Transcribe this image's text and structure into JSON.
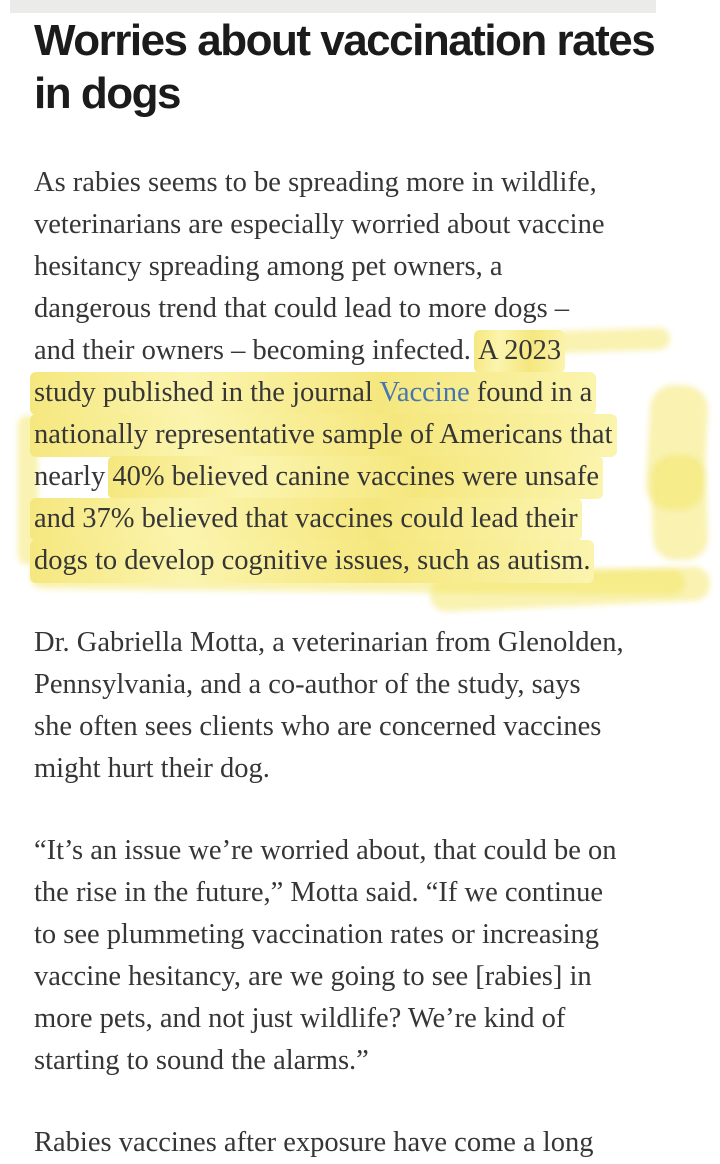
{
  "page": {
    "background": "#ffffff",
    "media_strip_color": "#ebebea"
  },
  "article": {
    "colors": {
      "heading": "#1b1b1b",
      "body_text": "#363636",
      "link": "#4577ae",
      "highlight_strong": "#f5e77e",
      "highlight_soft": "#fbf4ae",
      "highlight_stroke": "rgba(244,229,99,0.5)"
    },
    "title_lines": [
      "Worries about vaccination rates",
      "in dogs"
    ],
    "paragraphs": [
      {
        "name": "intro-paragraph",
        "lines": [
          [
            {
              "text": "As rabies seems to be spreading more in wildlife,"
            }
          ],
          [
            {
              "text": "veterinarians are especially worried about vaccine"
            }
          ],
          [
            {
              "text": "hesitancy spreading among pet owners, a"
            }
          ],
          [
            {
              "text": "dangerous trend that could lead to more dogs –"
            }
          ],
          [
            {
              "text": "and their owners – becoming infected. "
            },
            {
              "text": "A 2023",
              "highlight": true
            }
          ],
          [
            {
              "text": "study published in the journal ",
              "highlight": true
            },
            {
              "text": "Vaccine",
              "highlight": true,
              "link": true
            },
            {
              "text": " found in a",
              "highlight": true
            }
          ],
          [
            {
              "text": "nationally representative sample of Americans that",
              "highlight": true
            }
          ],
          [
            {
              "text": "nearly "
            },
            {
              "text": "40% believed canine vaccines were unsafe",
              "highlight": true
            }
          ],
          [
            {
              "text": "and 37% believed that vaccines could lead their",
              "highlight": true
            }
          ],
          [
            {
              "text": "dogs to develop cognitive issues, such as autism.",
              "highlight": true
            }
          ]
        ]
      },
      {
        "name": "motta-paragraph",
        "lines": [
          [
            {
              "text": "Dr. Gabriella Motta, a veterinarian from Glenolden,"
            }
          ],
          [
            {
              "text": "Pennsylvania, and a co-author of the study, says"
            }
          ],
          [
            {
              "text": "she often sees clients who are concerned vaccines"
            }
          ],
          [
            {
              "text": "might hurt their dog."
            }
          ]
        ]
      },
      {
        "name": "quote-paragraph",
        "lines": [
          [
            {
              "text": "“It’s an issue we’re worried about, that could be on"
            }
          ],
          [
            {
              "text": "the rise in the future,” Motta said. “If we continue"
            }
          ],
          [
            {
              "text": "to see plummeting vaccination rates or increasing"
            }
          ],
          [
            {
              "text": "vaccine hesitancy, are we going to see [rabies] in"
            }
          ],
          [
            {
              "text": "more pets, and not just wildlife? We’re kind of"
            }
          ],
          [
            {
              "text": "starting to sound the alarms.”"
            }
          ]
        ]
      },
      {
        "name": "rabies-vaccines-paragraph",
        "lines": [
          [
            {
              "text": "Rabies vaccines after exposure have come a long"
            }
          ]
        ]
      }
    ]
  }
}
